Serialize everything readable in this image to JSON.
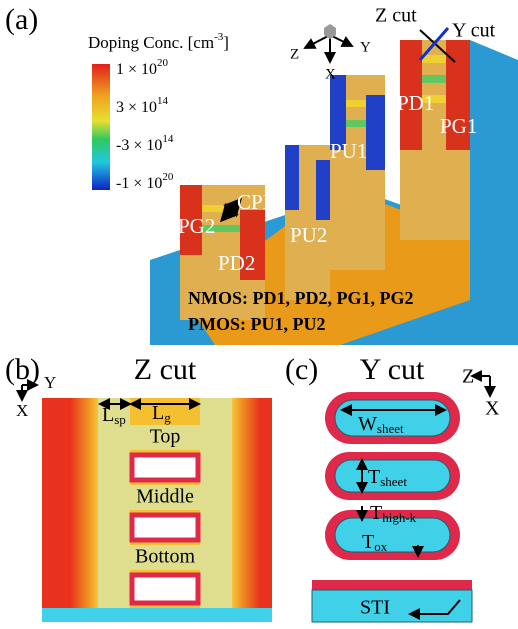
{
  "panel_a": {
    "label": "(a)",
    "colorbar": {
      "title": {
        "text": "Doping Conc. [cm",
        "sup": "-3",
        "end": "]"
      },
      "ticks": [
        {
          "text": "1 × 10",
          "sup": "20"
        },
        {
          "text": "3 × 10",
          "sup": "14"
        },
        {
          "text": "-3 × 10",
          "sup": "14"
        },
        {
          "text": "-1 × 10",
          "sup": "20"
        }
      ]
    },
    "axes": {
      "z": "Z",
      "y": "Y",
      "x": "X"
    },
    "cuts": [
      "Z cut",
      "Y cut"
    ],
    "devices": [
      "PD1",
      "PG1",
      "PU1",
      "PU2",
      "PG2",
      "PD2"
    ],
    "cpp": "CPP",
    "legend": [
      "NMOS: PD1, PD2, PG1, PG2",
      "PMOS: PU1, PU2"
    ]
  },
  "panel_b": {
    "label": "(b)",
    "title": "Z cut",
    "axes": {
      "y": "Y",
      "x": "X"
    },
    "lsp": {
      "base": "L",
      "sub": "sp"
    },
    "lg": {
      "base": "L",
      "sub": "g"
    },
    "sheets": [
      "Top",
      "Middle",
      "Bottom"
    ]
  },
  "panel_c": {
    "label": "(c)",
    "title": "Y cut",
    "axes": {
      "z": "Z",
      "x": "X"
    },
    "w_sheet": {
      "base": "W",
      "sub": "sheet"
    },
    "t_sheet": {
      "base": "T",
      "sub": "sheet"
    },
    "t_highk": {
      "base": "T",
      "sub": "high-k"
    },
    "t_ox": {
      "base": "T",
      "sub": "ox"
    },
    "sti": "STI"
  }
}
